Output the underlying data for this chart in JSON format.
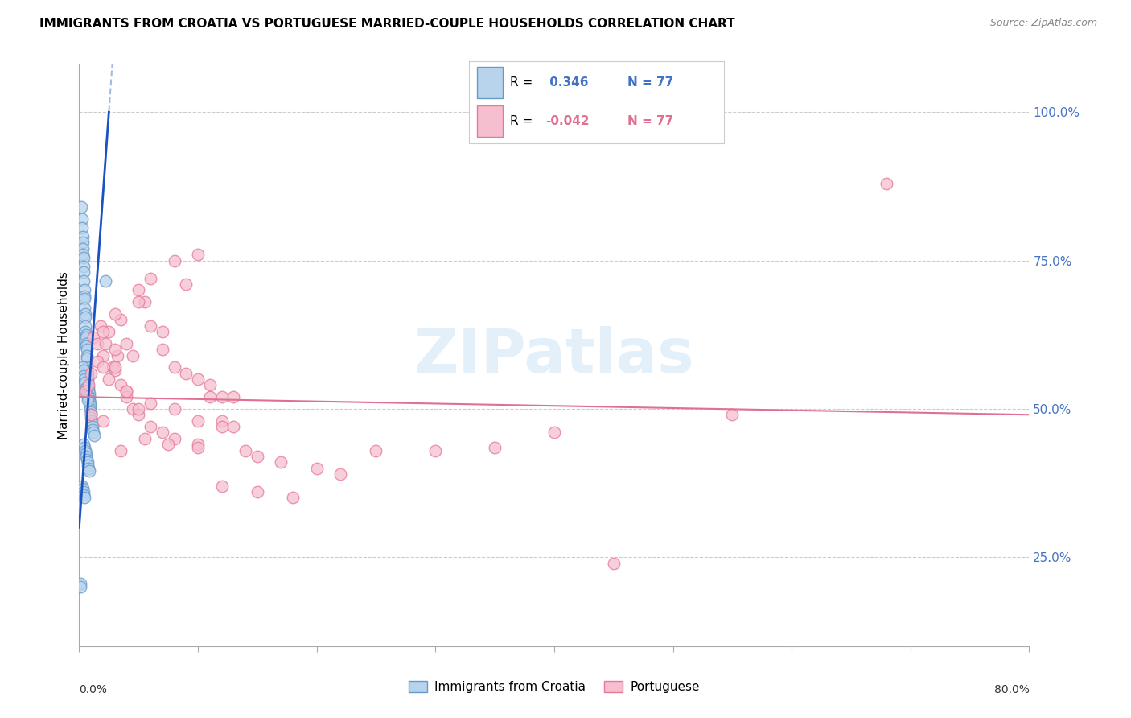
{
  "title": "IMMIGRANTS FROM CROATIA VS PORTUGUESE MARRIED-COUPLE HOUSEHOLDS CORRELATION CHART",
  "source": "Source: ZipAtlas.com",
  "ylabel": "Married-couple Households",
  "croatia_R": 0.346,
  "croatia_N": 77,
  "portuguese_R": -0.042,
  "portuguese_N": 77,
  "xmin": 0.0,
  "xmax": 80.0,
  "ymin": 10.0,
  "ymax": 108.0,
  "croatia_color": "#b8d4ec",
  "croatia_edge": "#6699cc",
  "portuguese_color": "#f5bfd0",
  "portuguese_edge": "#e87898",
  "trendline_croatia_color": "#1a52c2",
  "trendline_portuguese_color": "#e07090",
  "watermark": "ZIPatlas",
  "legend_R_color_croatia": "#4472c4",
  "legend_R_color_portuguese": "#e07090",
  "right_ytick_color": "#4472c4",
  "right_yticks": [
    25.0,
    50.0,
    75.0,
    100.0
  ],
  "grid_color": "#cccccc",
  "croatia_x": [
    0.12,
    0.18,
    0.22,
    0.25,
    0.28,
    0.3,
    0.32,
    0.33,
    0.35,
    0.36,
    0.38,
    0.4,
    0.42,
    0.43,
    0.45,
    0.46,
    0.48,
    0.5,
    0.52,
    0.53,
    0.55,
    0.56,
    0.58,
    0.6,
    0.62,
    0.63,
    0.65,
    0.67,
    0.68,
    0.7,
    0.72,
    0.73,
    0.75,
    0.78,
    0.8,
    0.82,
    0.85,
    0.88,
    0.9,
    0.92,
    0.95,
    0.98,
    1.0,
    1.02,
    1.05,
    1.08,
    1.1,
    1.15,
    1.2,
    1.25,
    0.3,
    0.35,
    0.4,
    0.45,
    0.5,
    0.55,
    0.6,
    0.65,
    0.7,
    0.75,
    0.4,
    0.45,
    0.5,
    0.55,
    0.6,
    0.65,
    0.7,
    0.75,
    0.8,
    0.85,
    0.25,
    0.3,
    0.35,
    0.4,
    0.45,
    0.12,
    2.2
  ],
  "croatia_y": [
    20.5,
    84.0,
    82.0,
    80.5,
    79.0,
    78.0,
    77.0,
    76.0,
    75.5,
    74.0,
    73.0,
    71.5,
    70.0,
    69.0,
    68.5,
    67.0,
    66.0,
    65.5,
    64.0,
    63.0,
    62.5,
    62.0,
    61.0,
    60.5,
    60.0,
    59.0,
    58.5,
    57.0,
    56.5,
    56.0,
    55.5,
    55.0,
    54.5,
    53.5,
    53.0,
    52.5,
    52.0,
    51.5,
    51.0,
    50.5,
    50.0,
    49.5,
    49.0,
    48.5,
    48.0,
    47.5,
    47.0,
    46.5,
    46.0,
    45.5,
    57.0,
    56.5,
    55.5,
    55.0,
    54.5,
    53.5,
    53.0,
    52.5,
    52.0,
    51.5,
    44.0,
    43.5,
    43.0,
    42.5,
    42.0,
    41.5,
    41.0,
    40.5,
    40.0,
    39.5,
    37.0,
    36.5,
    36.0,
    35.5,
    35.0,
    20.0,
    71.5
  ],
  "portuguese_x": [
    0.5,
    0.8,
    1.2,
    1.5,
    1.8,
    2.0,
    2.2,
    2.5,
    2.8,
    3.0,
    3.2,
    3.5,
    4.0,
    4.5,
    5.0,
    5.5,
    6.0,
    7.0,
    8.0,
    9.0,
    10.0,
    11.0,
    12.0,
    13.0,
    14.0,
    15.0,
    17.0,
    20.0,
    22.0,
    25.0,
    1.0,
    1.5,
    2.0,
    2.5,
    3.0,
    3.5,
    4.0,
    4.5,
    5.0,
    6.0,
    7.0,
    8.0,
    10.0,
    12.0,
    15.0,
    18.0,
    2.0,
    3.0,
    4.0,
    5.0,
    6.0,
    8.0,
    10.0,
    12.0,
    3.0,
    5.0,
    7.0,
    9.0,
    11.0,
    13.0,
    3.5,
    5.5,
    7.5,
    10.0,
    1.0,
    2.0,
    4.0,
    6.0,
    8.0,
    10.0,
    12.0,
    30.0,
    35.0,
    40.0,
    55.0,
    68.0,
    45.0
  ],
  "portuguese_y": [
    53.0,
    54.0,
    62.0,
    61.0,
    64.0,
    59.0,
    61.0,
    63.0,
    57.0,
    56.5,
    59.0,
    65.0,
    61.0,
    59.0,
    70.0,
    68.0,
    72.0,
    63.0,
    75.0,
    71.0,
    76.0,
    52.0,
    48.0,
    47.0,
    43.0,
    42.0,
    41.0,
    40.0,
    39.0,
    43.0,
    56.0,
    58.0,
    57.0,
    55.0,
    57.0,
    54.0,
    53.0,
    50.0,
    49.0,
    47.0,
    46.0,
    45.0,
    44.0,
    37.0,
    36.0,
    35.0,
    63.0,
    66.0,
    52.0,
    50.0,
    64.0,
    57.0,
    55.0,
    52.0,
    60.0,
    68.0,
    60.0,
    56.0,
    54.0,
    52.0,
    43.0,
    45.0,
    44.0,
    43.5,
    49.0,
    48.0,
    53.0,
    51.0,
    50.0,
    48.0,
    47.0,
    43.0,
    43.5,
    46.0,
    49.0,
    88.0,
    24.0
  ]
}
